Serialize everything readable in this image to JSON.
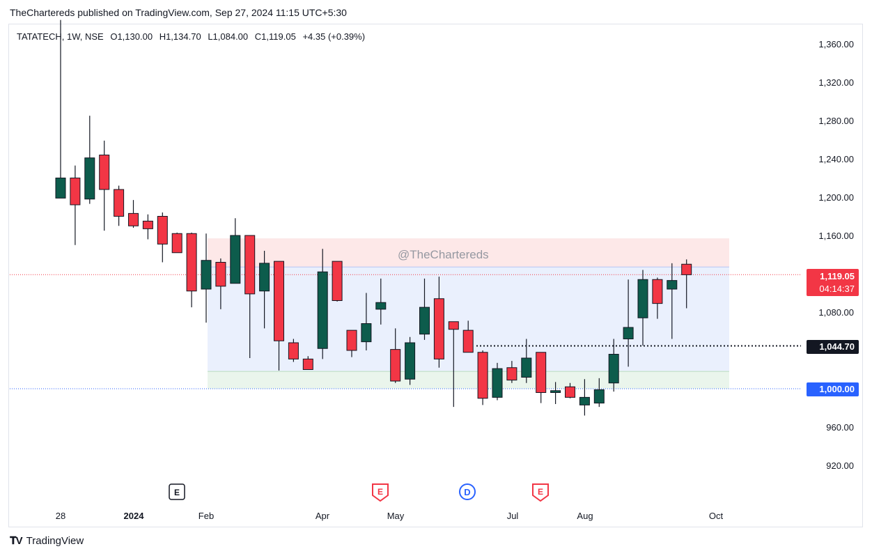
{
  "header": {
    "publisher": "TheChartereds published on TradingView.com, Sep 27, 2024 11:15 UTC+5:30"
  },
  "legend": {
    "symbol": "TATATECH, 1W, NSE",
    "open": "O1,130.00",
    "high": "H1,134.70",
    "low": "L1,084.00",
    "close": "C1,119.05",
    "change": "+4.35 (+0.39%)"
  },
  "watermark": "@TheChartereds",
  "price_tags": {
    "last_price": "1,119.05",
    "countdown": "04:14:37",
    "dotted_level": "1,044.70",
    "level": "1,000.00"
  },
  "footer": {
    "logo_text": "TradingView"
  },
  "events": [
    {
      "letter": "E",
      "style": "neutral"
    },
    {
      "letter": "E",
      "style": "red"
    },
    {
      "letter": "D",
      "style": "blue"
    },
    {
      "letter": "E",
      "style": "red"
    }
  ],
  "colors": {
    "up": "#0d5c4c",
    "down": "#f23645",
    "supply_zone": "#fde6e6",
    "range_zone": "#e8eefd",
    "demand_zone": "#e8f4ea",
    "level_line": "#2962ff",
    "last_price_line": "#f23645"
  },
  "chart_data": {
    "type": "candlestick",
    "interval": "1W",
    "ylim": [
      890,
      1384
    ],
    "y_ticks": [
      "1,360.00",
      "1,320.00",
      "1,280.00",
      "1,240.00",
      "1,200.00",
      "1,160.00",
      "1,080.00",
      "960.00",
      "920.00"
    ],
    "x_ticks": [
      "28",
      "2024",
      "Feb",
      "Apr",
      "May",
      "Jul",
      "Aug",
      "Oct"
    ],
    "candles": [
      {
        "o": 1199,
        "h": 1385,
        "l": 1199,
        "c": 1220
      },
      {
        "o": 1220,
        "h": 1233,
        "l": 1150,
        "c": 1192
      },
      {
        "o": 1198,
        "h": 1285,
        "l": 1193,
        "c": 1241
      },
      {
        "o": 1244,
        "h": 1259,
        "l": 1165,
        "c": 1208
      },
      {
        "o": 1208,
        "h": 1212,
        "l": 1170,
        "c": 1180
      },
      {
        "o": 1183,
        "h": 1197,
        "l": 1168,
        "c": 1170
      },
      {
        "o": 1175,
        "h": 1182,
        "l": 1156,
        "c": 1167
      },
      {
        "o": 1180,
        "h": 1184,
        "l": 1132,
        "c": 1151
      },
      {
        "o": 1162,
        "h": 1163,
        "l": 1142,
        "c": 1142
      },
      {
        "o": 1162,
        "h": 1163,
        "l": 1085,
        "c": 1102
      },
      {
        "o": 1104,
        "h": 1162,
        "l": 1069,
        "c": 1134
      },
      {
        "o": 1132,
        "h": 1136,
        "l": 1083,
        "c": 1107
      },
      {
        "o": 1110,
        "h": 1178,
        "l": 1110,
        "c": 1160
      },
      {
        "o": 1160,
        "h": 1160,
        "l": 1032,
        "c": 1099
      },
      {
        "o": 1102,
        "h": 1144,
        "l": 1063,
        "c": 1131
      },
      {
        "o": 1133,
        "h": 1133,
        "l": 1019,
        "c": 1050
      },
      {
        "o": 1048,
        "h": 1052,
        "l": 1028,
        "c": 1031
      },
      {
        "o": 1031,
        "h": 1034,
        "l": 1020,
        "c": 1020
      },
      {
        "o": 1042,
        "h": 1146,
        "l": 1031,
        "c": 1122
      },
      {
        "o": 1133,
        "h": 1133,
        "l": 1091,
        "c": 1092
      },
      {
        "o": 1061,
        "h": 1061,
        "l": 1033,
        "c": 1040
      },
      {
        "o": 1049,
        "h": 1100,
        "l": 1040,
        "c": 1068
      },
      {
        "o": 1083,
        "h": 1115,
        "l": 1067,
        "c": 1090
      },
      {
        "o": 1041,
        "h": 1063,
        "l": 1006,
        "c": 1008
      },
      {
        "o": 1010,
        "h": 1054,
        "l": 1004,
        "c": 1048
      },
      {
        "o": 1057,
        "h": 1115,
        "l": 1051,
        "c": 1085
      },
      {
        "o": 1094,
        "h": 1117,
        "l": 1022,
        "c": 1031
      },
      {
        "o": 1070,
        "h": 1070,
        "l": 981,
        "c": 1062
      },
      {
        "o": 1061,
        "h": 1071,
        "l": 1038,
        "c": 1038
      },
      {
        "o": 1038,
        "h": 1040,
        "l": 983,
        "c": 990
      },
      {
        "o": 991,
        "h": 1027,
        "l": 988,
        "c": 1021
      },
      {
        "o": 1022,
        "h": 1029,
        "l": 1006,
        "c": 1009
      },
      {
        "o": 1012,
        "h": 1052,
        "l": 1006,
        "c": 1032
      },
      {
        "o": 1038,
        "h": 1038,
        "l": 985,
        "c": 996
      },
      {
        "o": 996,
        "h": 1007,
        "l": 984,
        "c": 998
      },
      {
        "o": 1002,
        "h": 1006,
        "l": 990,
        "c": 991
      },
      {
        "o": 983,
        "h": 1010,
        "l": 972,
        "c": 991
      },
      {
        "o": 985,
        "h": 1011,
        "l": 981,
        "c": 999
      },
      {
        "o": 1006,
        "h": 1052,
        "l": 997,
        "c": 1036
      },
      {
        "o": 1052,
        "h": 1114,
        "l": 1023,
        "c": 1064
      },
      {
        "o": 1074,
        "h": 1124,
        "l": 1045,
        "c": 1114
      },
      {
        "o": 1114,
        "h": 1116,
        "l": 1073,
        "c": 1089
      },
      {
        "o": 1104,
        "h": 1131,
        "l": 1052,
        "c": 1113
      },
      {
        "o": 1130,
        "h": 1135,
        "l": 1084,
        "c": 1119
      }
    ],
    "zones": [
      {
        "name": "",
        "from": 1127,
        "to": 1157
      },
      {
        "name": "",
        "from": 1018,
        "to": 1127
      },
      {
        "name": "",
        "from": 1000,
        "to": 1018
      }
    ],
    "horizontal_levels": [
      1119.05,
      1044.7,
      1000.0
    ]
  }
}
